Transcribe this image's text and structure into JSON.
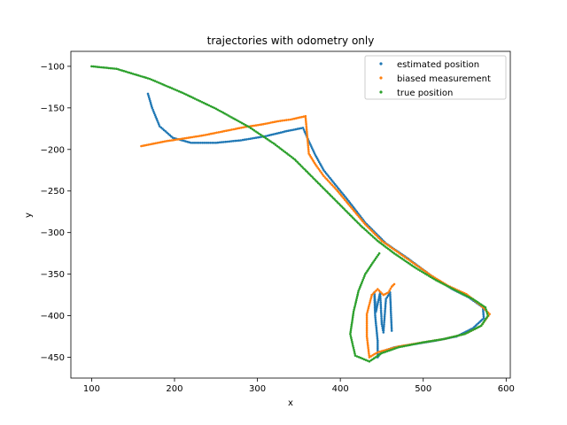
{
  "chart_data": {
    "type": "scatter",
    "title": "trajectories with odometry only",
    "xlabel": "x",
    "ylabel": "y",
    "xlim": [
      75,
      605
    ],
    "ylim": [
      -475,
      -82
    ],
    "xticks": [
      100,
      200,
      300,
      400,
      500,
      600
    ],
    "yticks": [
      -450,
      -400,
      -350,
      -300,
      -250,
      -200,
      -150,
      -100
    ],
    "xtick_labels": [
      "100",
      "200",
      "300",
      "400",
      "500",
      "600"
    ],
    "ytick_labels": [
      "−450",
      "−400",
      "−350",
      "−300",
      "−250",
      "−200",
      "−150",
      "−100"
    ],
    "grid": false,
    "legend_position": "top-right",
    "series": [
      {
        "name": "estimated position",
        "color": "#1f77b4",
        "path": [
          [
            168,
            -133
          ],
          [
            173,
            -150
          ],
          [
            182,
            -172
          ],
          [
            198,
            -186
          ],
          [
            220,
            -192
          ],
          [
            250,
            -192
          ],
          [
            280,
            -189
          ],
          [
            310,
            -184
          ],
          [
            335,
            -178
          ],
          [
            355,
            -174
          ],
          [
            362,
            -190
          ],
          [
            370,
            -207
          ],
          [
            380,
            -225
          ],
          [
            392,
            -240
          ],
          [
            410,
            -262
          ],
          [
            430,
            -288
          ],
          [
            455,
            -313
          ],
          [
            480,
            -330
          ],
          [
            510,
            -352
          ],
          [
            535,
            -368
          ],
          [
            555,
            -378
          ],
          [
            572,
            -390
          ],
          [
            573,
            -403
          ],
          [
            560,
            -415
          ],
          [
            540,
            -425
          ],
          [
            515,
            -430
          ],
          [
            490,
            -434
          ],
          [
            465,
            -438
          ],
          [
            450,
            -443
          ],
          [
            445,
            -450
          ],
          [
            445,
            -430
          ],
          [
            442,
            -400
          ],
          [
            441,
            -372
          ],
          [
            443,
            -395
          ],
          [
            448,
            -372
          ],
          [
            450,
            -410
          ],
          [
            452,
            -420
          ],
          [
            455,
            -380
          ],
          [
            460,
            -372
          ],
          [
            461,
            -395
          ],
          [
            462,
            -418
          ]
        ]
      },
      {
        "name": "biased measurement",
        "color": "#ff7f0e",
        "path": [
          [
            160,
            -196
          ],
          [
            175,
            -193
          ],
          [
            190,
            -190
          ],
          [
            210,
            -187
          ],
          [
            235,
            -183
          ],
          [
            260,
            -178
          ],
          [
            285,
            -173
          ],
          [
            305,
            -170
          ],
          [
            325,
            -166
          ],
          [
            340,
            -164
          ],
          [
            358,
            -160
          ],
          [
            362,
            -205
          ],
          [
            370,
            -218
          ],
          [
            380,
            -232
          ],
          [
            395,
            -248
          ],
          [
            410,
            -266
          ],
          [
            430,
            -290
          ],
          [
            450,
            -310
          ],
          [
            470,
            -324
          ],
          [
            490,
            -338
          ],
          [
            510,
            -352
          ],
          [
            530,
            -364
          ],
          [
            552,
            -374
          ],
          [
            570,
            -388
          ],
          [
            580,
            -398
          ],
          [
            570,
            -412
          ],
          [
            550,
            -422
          ],
          [
            525,
            -428
          ],
          [
            500,
            -432
          ],
          [
            470,
            -437
          ],
          [
            445,
            -444
          ],
          [
            435,
            -450
          ],
          [
            432,
            -425
          ],
          [
            432,
            -398
          ],
          [
            438,
            -375
          ],
          [
            445,
            -368
          ],
          [
            452,
            -375
          ],
          [
            458,
            -372
          ],
          [
            462,
            -365
          ],
          [
            465,
            -362
          ]
        ]
      },
      {
        "name": "true position",
        "color": "#2ca02c",
        "path": [
          [
            100,
            -100
          ],
          [
            130,
            -103
          ],
          [
            170,
            -115
          ],
          [
            210,
            -132
          ],
          [
            250,
            -151
          ],
          [
            290,
            -173
          ],
          [
            320,
            -193
          ],
          [
            345,
            -212
          ],
          [
            365,
            -232
          ],
          [
            385,
            -252
          ],
          [
            405,
            -272
          ],
          [
            425,
            -292
          ],
          [
            445,
            -310
          ],
          [
            465,
            -325
          ],
          [
            490,
            -342
          ],
          [
            515,
            -357
          ],
          [
            540,
            -370
          ],
          [
            560,
            -380
          ],
          [
            575,
            -390
          ],
          [
            578,
            -400
          ],
          [
            570,
            -412
          ],
          [
            550,
            -422
          ],
          [
            525,
            -428
          ],
          [
            500,
            -432
          ],
          [
            470,
            -438
          ],
          [
            450,
            -445
          ],
          [
            435,
            -455
          ],
          [
            418,
            -448
          ],
          [
            412,
            -422
          ],
          [
            416,
            -395
          ],
          [
            422,
            -370
          ],
          [
            430,
            -350
          ],
          [
            440,
            -335
          ],
          [
            447,
            -325
          ]
        ]
      }
    ]
  }
}
